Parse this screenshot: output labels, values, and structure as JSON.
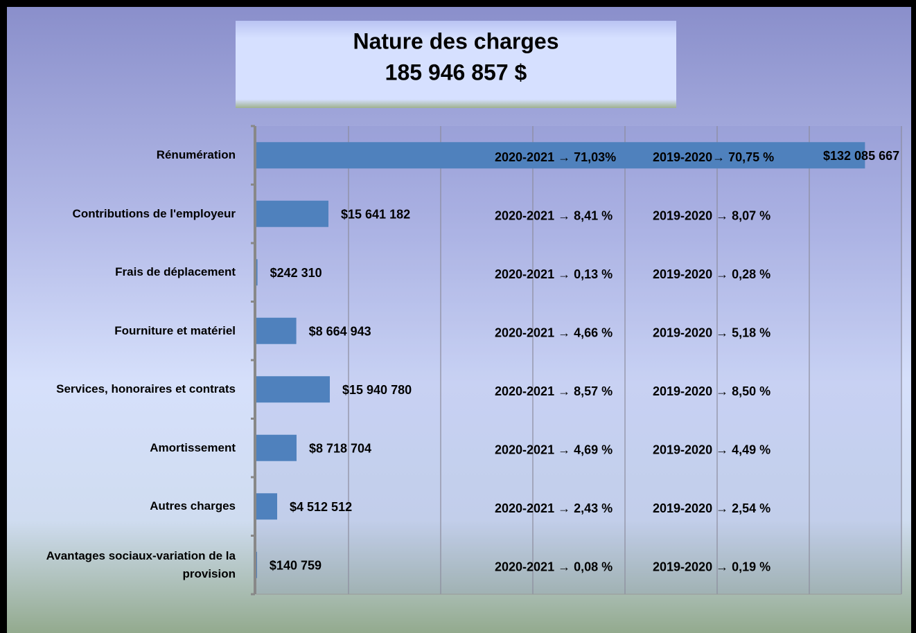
{
  "chart_data": {
    "type": "bar",
    "orientation": "horizontal",
    "title": "Nature des charges",
    "subtitle": "185 946 857 $",
    "categories": [
      "Rénumération",
      "Contributions de l'employeur",
      "Frais de déplacement",
      "Fourniture et matériel",
      "Services, honoraires et contrats",
      "Amortissement",
      "Autres charges",
      "Avantages sociaux-variation de la provision"
    ],
    "values": [
      132085667,
      15641182,
      242310,
      8664943,
      15940780,
      8718704,
      4512512,
      140759
    ],
    "value_labels": [
      "$132 085 667",
      "$15 641 182",
      "$242 310",
      "$8 664 943",
      "$15 940 780",
      "$8 718 704",
      "$4 512 512",
      "$140 759"
    ],
    "annotations": [
      [
        "2020-2021 → 71,03%",
        "2019-2020→ 70,75 %"
      ],
      [
        "2020-2021 → 8,41 %",
        "2019-2020 → 8,07 %"
      ],
      [
        "2020-2021 → 0,13 %",
        "2019-2020 →  0,28 %"
      ],
      [
        "2020-2021 → 4,66 %",
        "2019-2020 → 5,18 %"
      ],
      [
        "2020-2021 → 8,57 %",
        "2019-2020 → 8,50 %"
      ],
      [
        "2020-2021 → 4,69 %",
        "2019-2020 → 4,49 %"
      ],
      [
        "2020-2021 → 2,43 %",
        "2019-2020 → 2,54 %"
      ],
      [
        "2020-2021 → 0,08 %",
        "2019-2020 → 0,19 %"
      ]
    ],
    "color": "#4f81bd",
    "xlim": [
      0,
      140000000
    ],
    "xticks": [
      0,
      20000000,
      40000000,
      60000000,
      80000000,
      100000000,
      120000000,
      140000000
    ],
    "grid": true
  }
}
